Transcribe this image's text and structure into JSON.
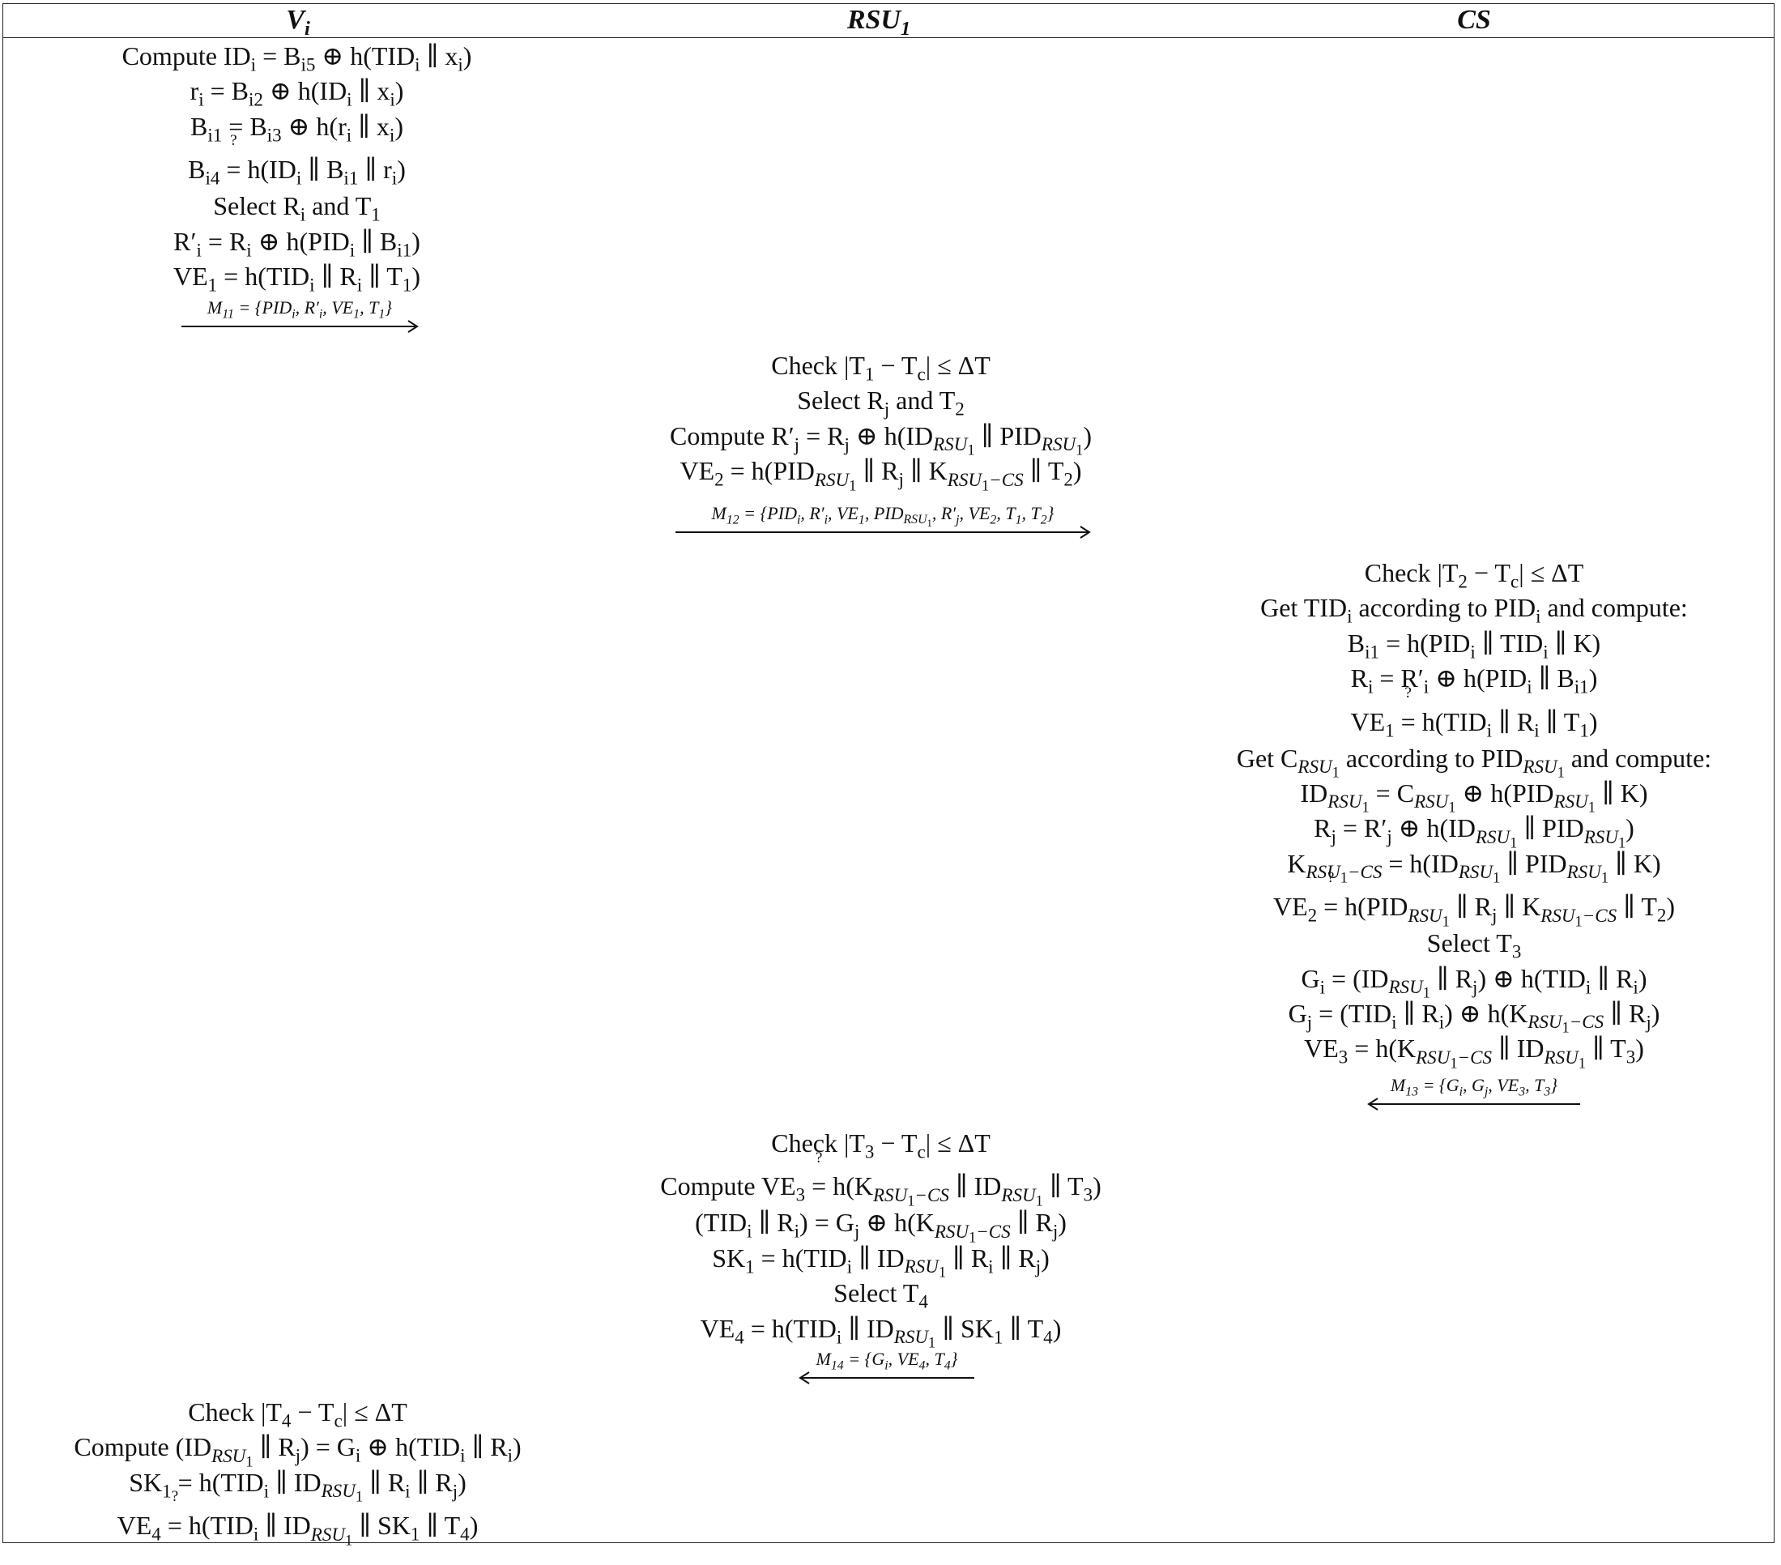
{
  "columns": {
    "vi": "V_i",
    "rsu": "RSU_1",
    "cs": "CS"
  },
  "steps": {
    "vehicle_login": [
      "Compute ID_i = B_i5 ⊕ h(TID_i ∥ x_i)",
      "r_i = B_i2 ⊕ h(ID_i ∥ x_i)",
      "B_i1 = B_i3 ⊕ h(r_i ∥ x_i)",
      "B_i4 ?= h(ID_i ∥ B_i1 ∥ r_i)",
      "Select R_i and T_1",
      "R′_i = R_i ⊕ h(PID_i ∥ B_i1)",
      "VE_1 = h(TID_i ∥ R_i ∥ T_1)"
    ],
    "rsu_forward": [
      "Check |T_1 − T_c| ≤ ΔT",
      "Select R_j and T_2",
      "Compute R′_j = R_j ⊕ h(ID_RSU1 ∥ PID_RSU1)",
      "VE_2 = h(PID_RSU1 ∥ R_j ∥ K_RSU1−CS ∥ T_2)"
    ],
    "cs_verify": [
      "Check |T_2 − T_c| ≤ ΔT",
      "Get TID_i according to PID_i and compute:",
      "B_i1 = h(PID_i ∥ TID_i ∥ K)",
      "R_i = R′_i ⊕ h(PID_i ∥ B_i1)",
      "VE_1 ?= h(TID_i ∥ R_i ∥ T_1)",
      "Get C_RSU1 according to PID_RSU1 and compute:",
      "ID_RSU1 = C_RSU1 ⊕ h(PID_RSU1 ∥ K)",
      "R_j = R′_j ⊕ h(ID_RSU1 ∥ PID_RSU1)",
      "K_RSU1−CS = h(ID_RSU1 ∥ PID_RSU1 ∥ K)",
      "VE_2 ?= h(PID_RSU1 ∥ R_j ∥ K_RSU1−CS ∥ T_2)",
      "Select T_3",
      "G_i = (ID_RSU1 ∥ R_j) ⊕ h(TID_i ∥ R_i)",
      "G_j = (TID_i ∥ R_i) ⊕ h(K_RSU1−CS ∥ R_j)",
      "VE_3 = h(K_RSU1−CS ∥ ID_RSU1 ∥ T_3)"
    ],
    "rsu_respond": [
      "Check |T_3 − T_c| ≤ ΔT",
      "Compute VE_3 ?= h(K_RSU1−CS ∥ ID_RSU1 ∥ T_3)",
      "(TID_i ∥ R_i) = G_j ⊕ h(K_RSU1−CS ∥ R_j)",
      "SK_1 = h(TID_i ∥ ID_RSU1 ∥ R_i ∥ R_j)",
      "Select T_4",
      "VE_4 = h(TID_i ∥ ID_RSU1 ∥ SK_1 ∥ T_4)"
    ],
    "vehicle_finish": [
      "Check |T_4 − T_c| ≤ ΔT",
      "Compute (ID_RSU1 ∥ R_j) = G_i ⊕ h(TID_i ∥ R_i)",
      "SK_1 = h(TID_i ∥ ID_RSU1 ∥ R_i ∥ R_j)",
      "VE_4 ?= h(TID_i ∥ ID_RSU1 ∥ SK_1 ∥ T_4)"
    ]
  },
  "messages": {
    "m11": "M_11 = {PID_i, R′_i, VE_1, T_1}",
    "m12": "M_12 = {PID_i, R′_i, VE_1, PID_RSU1, R′_j, VE_2, T_1, T_2}",
    "m13": "M_13 = {G_i, G_j, VE_3, T_3}",
    "m14": "M_14 = {G_i, VE_4, T_4}"
  }
}
